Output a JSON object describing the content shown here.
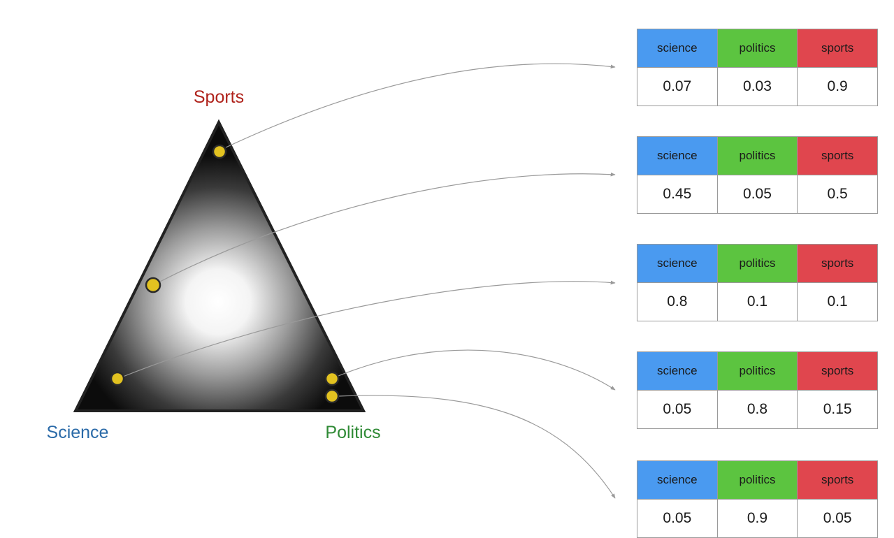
{
  "vertices": {
    "top": "Sports",
    "left": "Science",
    "right": "Politics"
  },
  "colors": {
    "sports": "#b0231c",
    "science": "#2a6aa8",
    "politics": "#2f8a35",
    "science_header": "#4a9af0",
    "politics_header": "#5cc440",
    "sports_header": "#e0464e",
    "point_fill": "#e2c220",
    "arrow": "#9a9a9a"
  },
  "table_headers": {
    "science": "science",
    "politics": "politics",
    "sports": "sports"
  },
  "distributions": [
    {
      "science": "0.07",
      "politics": "0.03",
      "sports": "0.9"
    },
    {
      "science": "0.45",
      "politics": "0.05",
      "sports": "0.5"
    },
    {
      "science": "0.8",
      "politics": "0.1",
      "sports": "0.1"
    },
    {
      "science": "0.05",
      "politics": "0.8",
      "sports": "0.15"
    },
    {
      "science": "0.05",
      "politics": "0.9",
      "sports": "0.05"
    }
  ]
}
